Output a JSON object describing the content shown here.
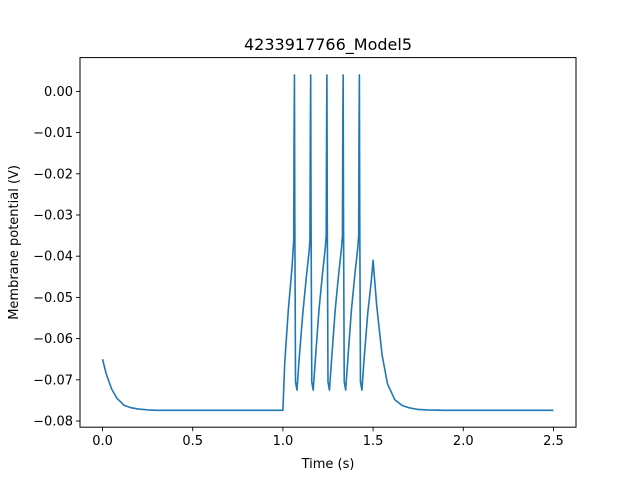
{
  "chart_data": {
    "type": "line",
    "title": "4233917766_Model5",
    "xlabel": "Time (s)",
    "ylabel": "Membrane potential (V)",
    "xlim": [
      -0.125,
      2.625
    ],
    "ylim": [
      -0.0815,
      0.0082
    ],
    "xticks": [
      0.0,
      0.5,
      1.0,
      1.5,
      2.0,
      2.5
    ],
    "xtick_labels": [
      "0.0",
      "0.5",
      "1.0",
      "1.5",
      "2.0",
      "2.5"
    ],
    "yticks": [
      0.0,
      -0.01,
      -0.02,
      -0.03,
      -0.04,
      -0.05,
      -0.06,
      -0.07,
      -0.08
    ],
    "ytick_labels": [
      "0.00",
      "−0.01",
      "−0.02",
      "−0.03",
      "−0.04",
      "−0.05",
      "−0.06",
      "−0.07",
      "−0.08"
    ],
    "grid": false,
    "color": "#1f77b4",
    "series": [
      {
        "x": [
          0.0,
          0.02,
          0.05,
          0.08,
          0.12,
          0.16,
          0.2,
          0.25,
          0.3,
          0.4,
          0.5,
          0.7,
          0.9,
          1.0,
          1.01,
          1.03,
          1.05,
          1.06,
          1.062,
          1.064,
          1.066,
          1.07,
          1.078,
          1.09,
          1.11,
          1.13,
          1.145,
          1.15,
          1.152,
          1.154,
          1.156,
          1.16,
          1.168,
          1.18,
          1.2,
          1.22,
          1.235,
          1.24,
          1.242,
          1.244,
          1.246,
          1.25,
          1.258,
          1.27,
          1.29,
          1.31,
          1.325,
          1.33,
          1.332,
          1.334,
          1.336,
          1.34,
          1.348,
          1.36,
          1.38,
          1.4,
          1.415,
          1.42,
          1.422,
          1.424,
          1.426,
          1.43,
          1.438,
          1.45,
          1.47,
          1.49,
          1.5,
          1.52,
          1.55,
          1.58,
          1.62,
          1.66,
          1.7,
          1.75,
          1.8,
          1.9,
          2.0,
          2.2,
          2.5
        ],
        "y": [
          -0.065,
          -0.0685,
          -0.0722,
          -0.0745,
          -0.0762,
          -0.0768,
          -0.0771,
          -0.0773,
          -0.0774,
          -0.0774,
          -0.0774,
          -0.0774,
          -0.0774,
          -0.0774,
          -0.066,
          -0.053,
          -0.043,
          -0.036,
          -0.01,
          0.004,
          -0.03,
          -0.0705,
          -0.0725,
          -0.065,
          -0.054,
          -0.045,
          -0.039,
          -0.036,
          -0.01,
          0.004,
          -0.03,
          -0.0705,
          -0.0725,
          -0.065,
          -0.053,
          -0.044,
          -0.038,
          -0.035,
          -0.01,
          0.004,
          -0.03,
          -0.0705,
          -0.0725,
          -0.065,
          -0.053,
          -0.044,
          -0.038,
          -0.035,
          -0.01,
          0.004,
          -0.03,
          -0.0705,
          -0.0725,
          -0.065,
          -0.053,
          -0.044,
          -0.038,
          -0.035,
          -0.01,
          0.004,
          -0.03,
          -0.0705,
          -0.0725,
          -0.065,
          -0.054,
          -0.046,
          -0.041,
          -0.052,
          -0.064,
          -0.071,
          -0.0748,
          -0.0762,
          -0.0768,
          -0.0772,
          -0.0773,
          -0.0774,
          -0.0774,
          -0.0774,
          -0.0774
        ]
      }
    ]
  }
}
